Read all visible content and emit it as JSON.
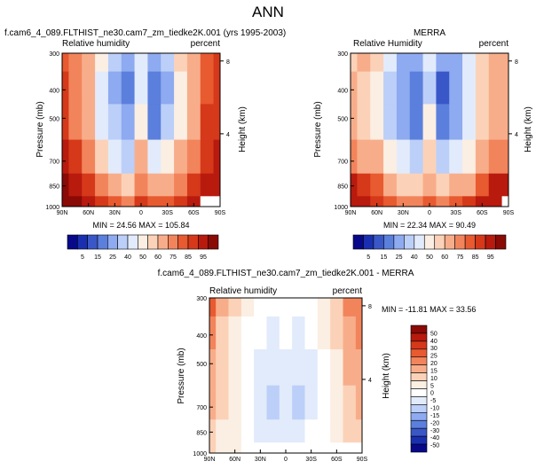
{
  "page_title": "ANN",
  "colors": {
    "scale_abs": [
      "#08088a",
      "#1a2fb0",
      "#3a57c8",
      "#5b7fdc",
      "#8eaaf0",
      "#bccff8",
      "#e2ebfb",
      "#fbeee2",
      "#fbd2b8",
      "#f8ad8a",
      "#f2845c",
      "#e85a30",
      "#d5391a",
      "#b81a0e",
      "#8a0a06"
    ],
    "scale_diff": [
      "#08088a",
      "#1a2fb0",
      "#3a57c8",
      "#5b7fdc",
      "#8eaaf0",
      "#bccff8",
      "#e2ebfb",
      "#ffffff",
      "#fbeee2",
      "#fbd2b8",
      "#f8ad8a",
      "#f2845c",
      "#e85a30",
      "#d5391a",
      "#b81a0e",
      "#8a0a06"
    ],
    "missing": "#ffffff"
  },
  "panels": {
    "model": {
      "title": "f.cam6_4_089.FLTHIST_ne30.cam7_zm_tiedke2K.001 (yrs 1995-2003)",
      "left_label": "Relative humidity",
      "right_label": "percent",
      "stats": "MIN = 24.56   MAX = 105.84"
    },
    "obs": {
      "title": "MERRA",
      "left_label": "Relative Humidity",
      "right_label": "percent",
      "stats": "MIN = 22.34   MAX = 90.49"
    },
    "diff": {
      "title": "f.cam6_4_089.FLTHIST_ne30.cam7_zm_tiedke2K.001 - MERRA",
      "left_label": "Relative humidity",
      "right_label": "percent",
      "stats": "MIN = -11.81   MAX = 33.56"
    }
  },
  "axes": {
    "ylabel": "Pressure (mb)",
    "y2label": "Height (km)",
    "pressure_ticks": [
      "300",
      "400",
      "500",
      "700",
      "850",
      "1000"
    ],
    "height_ticks": [
      "8",
      "4"
    ],
    "lat_ticks": [
      "90N",
      "60N",
      "30N",
      "0",
      "30S",
      "60S",
      "90S"
    ]
  },
  "colorbar_abs": {
    "labels": [
      "5",
      "15",
      "25",
      "40",
      "50",
      "60",
      "75",
      "85",
      "95"
    ]
  },
  "colorbar_diff": {
    "labels": [
      "50",
      "40",
      "30",
      "25",
      "20",
      "15",
      "10",
      "5",
      "0",
      "-5",
      "-10",
      "-15",
      "-20",
      "-30",
      "-40",
      "-50"
    ]
  },
  "chart_data": [
    {
      "type": "heatmap",
      "title": "f.cam6_4_089.FLTHIST_ne30.cam7_zm_tiedke2K.001 (yrs 1995-2003)",
      "variable": "Relative humidity",
      "units": "percent",
      "x": [
        -90,
        -75,
        -60,
        -45,
        -30,
        -15,
        0,
        15,
        30,
        45,
        60,
        75,
        90
      ],
      "y": [
        300,
        400,
        500,
        700,
        850,
        1000
      ],
      "xlabel": "",
      "ylabel": "Pressure (mb)",
      "values": [
        [
          78,
          72,
          62,
          52,
          42,
          32,
          48,
          30,
          40,
          55,
          68,
          78,
          80
        ],
        [
          80,
          72,
          62,
          48,
          38,
          28,
          46,
          26,
          38,
          52,
          66,
          78,
          80
        ],
        [
          82,
          72,
          62,
          48,
          40,
          30,
          52,
          28,
          40,
          52,
          66,
          80,
          82
        ],
        [
          88,
          82,
          72,
          58,
          48,
          42,
          62,
          45,
          52,
          60,
          72,
          84,
          86
        ],
        [
          95,
          90,
          82,
          70,
          62,
          58,
          72,
          60,
          65,
          72,
          82,
          90,
          92
        ],
        [
          100,
          95,
          88,
          80,
          75,
          72,
          80,
          75,
          78,
          82,
          90,
          null,
          null
        ]
      ],
      "min": 24.56,
      "max": 105.84
    },
    {
      "type": "heatmap",
      "title": "MERRA",
      "variable": "Relative Humidity",
      "units": "percent",
      "x": [
        -90,
        -75,
        -60,
        -45,
        -30,
        -15,
        0,
        15,
        30,
        45,
        60,
        75,
        90
      ],
      "y": [
        300,
        400,
        500,
        700,
        850,
        1000
      ],
      "xlabel": "",
      "ylabel": "Pressure (mb)",
      "values": [
        [
          58,
          60,
          55,
          45,
          38,
          30,
          45,
          30,
          38,
          48,
          58,
          65,
          62
        ],
        [
          60,
          58,
          50,
          40,
          33,
          25,
          44,
          24,
          34,
          45,
          55,
          65,
          62
        ],
        [
          62,
          58,
          50,
          40,
          36,
          28,
          50,
          25,
          36,
          46,
          55,
          66,
          64
        ],
        [
          70,
          66,
          60,
          50,
          45,
          40,
          58,
          42,
          48,
          54,
          62,
          72,
          72
        ],
        [
          85,
          82,
          75,
          65,
          58,
          55,
          68,
          58,
          62,
          68,
          78,
          85,
          86
        ],
        [
          90,
          88,
          82,
          76,
          72,
          70,
          76,
          72,
          75,
          80,
          85,
          88,
          null
        ]
      ],
      "min": 22.34,
      "max": 90.49
    },
    {
      "type": "heatmap",
      "title": "f.cam6_4_089.FLTHIST_ne30.cam7_zm_tiedke2K.001 - MERRA",
      "variable": "Relative humidity",
      "units": "percent",
      "x": [
        -90,
        -75,
        -60,
        -45,
        -30,
        -15,
        0,
        15,
        30,
        45,
        60,
        75,
        90
      ],
      "y": [
        300,
        400,
        500,
        700,
        850,
        1000
      ],
      "xlabel": "",
      "ylabel": "Pressure (mb)",
      "values": [
        [
          25,
          15,
          10,
          5,
          2,
          0,
          2,
          0,
          2,
          5,
          10,
          20,
          22
        ],
        [
          20,
          12,
          8,
          4,
          0,
          -2,
          0,
          -2,
          1,
          5,
          10,
          18,
          20
        ],
        [
          18,
          10,
          6,
          2,
          -2,
          -5,
          -2,
          -5,
          -1,
          3,
          9,
          16,
          18
        ],
        [
          15,
          10,
          5,
          1,
          -5,
          -8,
          -5,
          -7,
          -3,
          1,
          8,
          14,
          16
        ],
        [
          12,
          8,
          5,
          2,
          -3,
          -5,
          -1,
          -4,
          0,
          3,
          8,
          12,
          14
        ],
        [
          10,
          7,
          5,
          3,
          2,
          1,
          3,
          2,
          3,
          4,
          null,
          null,
          null
        ]
      ],
      "min": -11.81,
      "max": 33.56
    }
  ]
}
